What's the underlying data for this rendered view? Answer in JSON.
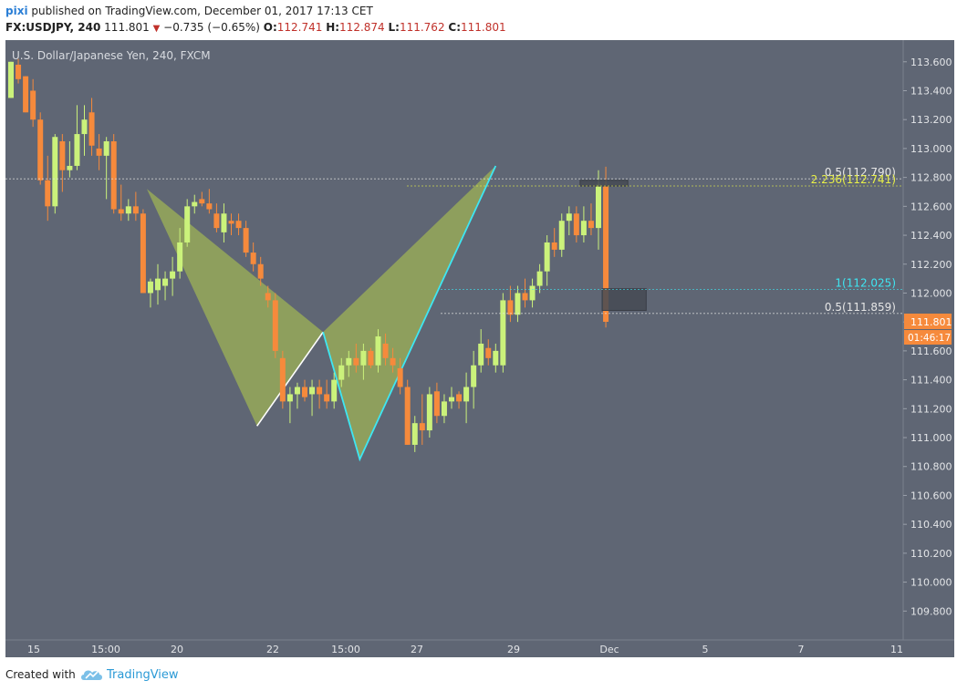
{
  "header": {
    "author": "pixi",
    "published_text": " published on TradingView.com, December 01, 2017 17:13 CET",
    "symbol": "FX:USDJPY, 240",
    "last": "111.801",
    "change": "−0.735 (−0.65%)",
    "o_label": "O:",
    "o_value": "112.741",
    "h_label": "H:",
    "h_value": "112.874",
    "l_label": "L:",
    "l_value": "111.762",
    "c_label": "C:",
    "c_value": "111.801"
  },
  "footer": {
    "created_with": "Created with",
    "brand": "TradingView"
  },
  "chart_data": {
    "type": "candlestick",
    "title": "U.S. Dollar/Japanese Yen, 240, FXCM",
    "colors": {
      "background": "#5f6674",
      "up": "#cbf27b",
      "down": "#f68a3c",
      "pattern_fill": "#a7bf52",
      "leg_white": "#ffffff",
      "leg_cyan": "#3ee6f2",
      "box": "#454a54",
      "fib_white": "#e6e6e6",
      "fib_yellow": "#e8f047",
      "fib_cyan": "#3ee6f2",
      "price_tag": "#f68a3c"
    },
    "ylim": [
      109.6,
      113.75
    ],
    "y_ticks": [
      113.6,
      113.4,
      113.2,
      113.0,
      112.8,
      112.6,
      112.4,
      112.2,
      112.0,
      111.8,
      111.6,
      111.4,
      111.2,
      111.0,
      110.8,
      110.6,
      110.4,
      110.2,
      110.0,
      109.8
    ],
    "x_ticks": [
      "15",
      "15:00",
      "20",
      "22",
      "15:00",
      "27",
      "29",
      "Dec",
      "5",
      "7",
      "11"
    ],
    "candles": [
      {
        "o": 113.35,
        "h": 113.6,
        "l": 113.35,
        "c": 113.6
      },
      {
        "o": 113.58,
        "h": 113.62,
        "l": 113.45,
        "c": 113.48
      },
      {
        "o": 113.5,
        "h": 113.5,
        "l": 113.25,
        "c": 113.25
      },
      {
        "o": 113.4,
        "h": 113.48,
        "l": 113.15,
        "c": 113.2
      },
      {
        "o": 113.2,
        "h": 113.25,
        "l": 112.75,
        "c": 112.78
      },
      {
        "o": 112.78,
        "h": 112.95,
        "l": 112.5,
        "c": 112.6
      },
      {
        "o": 112.6,
        "h": 113.1,
        "l": 112.55,
        "c": 113.08
      },
      {
        "o": 113.05,
        "h": 113.1,
        "l": 112.7,
        "c": 112.85
      },
      {
        "o": 112.85,
        "h": 113.05,
        "l": 112.8,
        "c": 112.88
      },
      {
        "o": 112.88,
        "h": 113.3,
        "l": 112.85,
        "c": 113.1
      },
      {
        "o": 113.1,
        "h": 113.3,
        "l": 112.95,
        "c": 113.2
      },
      {
        "o": 113.25,
        "h": 113.35,
        "l": 112.95,
        "c": 113.02
      },
      {
        "o": 113.0,
        "h": 113.1,
        "l": 112.85,
        "c": 112.95
      },
      {
        "o": 112.95,
        "h": 113.08,
        "l": 112.65,
        "c": 113.05
      },
      {
        "o": 113.05,
        "h": 113.1,
        "l": 112.55,
        "c": 112.58
      },
      {
        "o": 112.58,
        "h": 112.75,
        "l": 112.5,
        "c": 112.55
      },
      {
        "o": 112.55,
        "h": 112.65,
        "l": 112.5,
        "c": 112.6
      },
      {
        "o": 112.6,
        "h": 112.7,
        "l": 112.5,
        "c": 112.55
      },
      {
        "o": 112.55,
        "h": 112.58,
        "l": 112.0,
        "c": 112.0
      },
      {
        "o": 112.0,
        "h": 112.1,
        "l": 111.9,
        "c": 112.08
      },
      {
        "o": 112.02,
        "h": 112.2,
        "l": 111.92,
        "c": 112.1
      },
      {
        "o": 112.05,
        "h": 112.15,
        "l": 111.95,
        "c": 112.1
      },
      {
        "o": 112.1,
        "h": 112.25,
        "l": 111.98,
        "c": 112.15
      },
      {
        "o": 112.15,
        "h": 112.45,
        "l": 112.1,
        "c": 112.35
      },
      {
        "o": 112.35,
        "h": 112.65,
        "l": 112.32,
        "c": 112.6
      },
      {
        "o": 112.6,
        "h": 112.68,
        "l": 112.55,
        "c": 112.63
      },
      {
        "o": 112.65,
        "h": 112.7,
        "l": 112.6,
        "c": 112.62
      },
      {
        "o": 112.62,
        "h": 112.72,
        "l": 112.55,
        "c": 112.58
      },
      {
        "o": 112.55,
        "h": 112.62,
        "l": 112.42,
        "c": 112.45
      },
      {
        "o": 112.42,
        "h": 112.62,
        "l": 112.35,
        "c": 112.55
      },
      {
        "o": 112.5,
        "h": 112.55,
        "l": 112.4,
        "c": 112.48
      },
      {
        "o": 112.5,
        "h": 112.55,
        "l": 112.4,
        "c": 112.45
      },
      {
        "o": 112.45,
        "h": 112.5,
        "l": 112.25,
        "c": 112.28
      },
      {
        "o": 112.28,
        "h": 112.35,
        "l": 112.15,
        "c": 112.2
      },
      {
        "o": 112.2,
        "h": 112.25,
        "l": 112.05,
        "c": 112.1
      },
      {
        "o": 112.0,
        "h": 112.05,
        "l": 111.9,
        "c": 111.95
      },
      {
        "o": 111.95,
        "h": 112.0,
        "l": 111.55,
        "c": 111.6
      },
      {
        "o": 111.55,
        "h": 111.6,
        "l": 111.2,
        "c": 111.25
      },
      {
        "o": 111.25,
        "h": 111.35,
        "l": 111.1,
        "c": 111.3
      },
      {
        "o": 111.3,
        "h": 111.38,
        "l": 111.2,
        "c": 111.35
      },
      {
        "o": 111.35,
        "h": 111.4,
        "l": 111.25,
        "c": 111.28
      },
      {
        "o": 111.3,
        "h": 111.4,
        "l": 111.15,
        "c": 111.35
      },
      {
        "o": 111.35,
        "h": 111.4,
        "l": 111.2,
        "c": 111.3
      },
      {
        "o": 111.3,
        "h": 111.4,
        "l": 111.2,
        "c": 111.25
      },
      {
        "o": 111.25,
        "h": 111.45,
        "l": 111.2,
        "c": 111.4
      },
      {
        "o": 111.4,
        "h": 111.55,
        "l": 111.35,
        "c": 111.5
      },
      {
        "o": 111.5,
        "h": 111.6,
        "l": 111.42,
        "c": 111.55
      },
      {
        "o": 111.55,
        "h": 111.65,
        "l": 111.45,
        "c": 111.5
      },
      {
        "o": 111.5,
        "h": 111.65,
        "l": 111.4,
        "c": 111.6
      },
      {
        "o": 111.6,
        "h": 111.62,
        "l": 111.48,
        "c": 111.5
      },
      {
        "o": 111.5,
        "h": 111.75,
        "l": 111.45,
        "c": 111.7
      },
      {
        "o": 111.65,
        "h": 111.72,
        "l": 111.5,
        "c": 111.55
      },
      {
        "o": 111.55,
        "h": 111.62,
        "l": 111.45,
        "c": 111.5
      },
      {
        "o": 111.48,
        "h": 111.55,
        "l": 111.3,
        "c": 111.35
      },
      {
        "o": 111.35,
        "h": 111.4,
        "l": 110.95,
        "c": 110.95
      },
      {
        "o": 110.95,
        "h": 111.15,
        "l": 110.9,
        "c": 111.1
      },
      {
        "o": 111.1,
        "h": 111.3,
        "l": 110.95,
        "c": 111.05
      },
      {
        "o": 111.05,
        "h": 111.35,
        "l": 111.0,
        "c": 111.3
      },
      {
        "o": 111.32,
        "h": 111.38,
        "l": 111.1,
        "c": 111.15
      },
      {
        "o": 111.15,
        "h": 111.3,
        "l": 111.1,
        "c": 111.25
      },
      {
        "o": 111.25,
        "h": 111.35,
        "l": 111.2,
        "c": 111.28
      },
      {
        "o": 111.3,
        "h": 111.32,
        "l": 111.2,
        "c": 111.25
      },
      {
        "o": 111.25,
        "h": 111.45,
        "l": 111.1,
        "c": 111.35
      },
      {
        "o": 111.35,
        "h": 111.6,
        "l": 111.2,
        "c": 111.5
      },
      {
        "o": 111.5,
        "h": 111.75,
        "l": 111.45,
        "c": 111.65
      },
      {
        "o": 111.62,
        "h": 111.68,
        "l": 111.5,
        "c": 111.55
      },
      {
        "o": 111.5,
        "h": 111.65,
        "l": 111.45,
        "c": 111.6
      },
      {
        "o": 111.5,
        "h": 112.0,
        "l": 111.45,
        "c": 111.95
      },
      {
        "o": 111.95,
        "h": 112.05,
        "l": 111.8,
        "c": 111.85
      },
      {
        "o": 111.85,
        "h": 112.05,
        "l": 111.8,
        "c": 112.0
      },
      {
        "o": 112.0,
        "h": 112.1,
        "l": 111.9,
        "c": 111.95
      },
      {
        "o": 111.95,
        "h": 112.1,
        "l": 111.9,
        "c": 112.05
      },
      {
        "o": 112.05,
        "h": 112.2,
        "l": 112.0,
        "c": 112.15
      },
      {
        "o": 112.15,
        "h": 112.4,
        "l": 112.05,
        "c": 112.35
      },
      {
        "o": 112.35,
        "h": 112.45,
        "l": 112.25,
        "c": 112.3
      },
      {
        "o": 112.3,
        "h": 112.55,
        "l": 112.25,
        "c": 112.5
      },
      {
        "o": 112.5,
        "h": 112.6,
        "l": 112.4,
        "c": 112.55
      },
      {
        "o": 112.55,
        "h": 112.6,
        "l": 112.35,
        "c": 112.4
      },
      {
        "o": 112.4,
        "h": 112.6,
        "l": 112.35,
        "c": 112.5
      },
      {
        "o": 112.5,
        "h": 112.62,
        "l": 112.4,
        "c": 112.45
      },
      {
        "o": 112.45,
        "h": 112.85,
        "l": 112.3,
        "c": 112.75
      },
      {
        "o": 112.741,
        "h": 112.874,
        "l": 111.762,
        "c": 111.801
      }
    ],
    "harmonic": {
      "X": {
        "i": 18.5,
        "p": 112.72
      },
      "A": {
        "i": 33.5,
        "p": 111.08
      },
      "B": {
        "i": 42.5,
        "p": 111.73
      },
      "C": {
        "i": 47.5,
        "p": 110.85
      },
      "D": {
        "i": 66,
        "p": 112.88
      }
    },
    "boxes": [
      {
        "i1": 77.5,
        "i2": 84,
        "p1": 112.78,
        "p2": 112.74
      },
      {
        "i1": 80.5,
        "i2": 86.5,
        "p1": 112.03,
        "p2": 111.88
      }
    ],
    "fib_lines": [
      {
        "label": "0.5(112.790)",
        "price": 112.79,
        "color": "#e6e6e6"
      },
      {
        "label": "2.236(112.741)",
        "price": 112.741,
        "color": "#e8f047"
      },
      {
        "label": "1(112.025)",
        "price": 112.025,
        "color": "#3ee6f2"
      },
      {
        "label": "0.5(111.859)",
        "price": 111.859,
        "color": "#e6e6e6"
      }
    ],
    "last_price": "111.801",
    "countdown": "01:46:17"
  }
}
